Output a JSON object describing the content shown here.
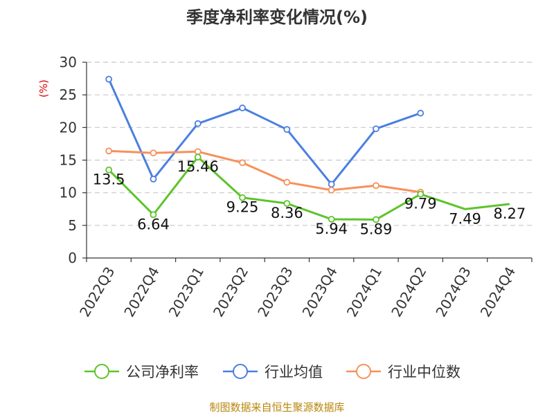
{
  "chart_data": {
    "type": "line",
    "title": "季度净利率变化情况(%)",
    "ylabel": "(%)",
    "ylim": [
      0,
      30
    ],
    "yticks": [
      0,
      5,
      10,
      15,
      20,
      25,
      30
    ],
    "grid": true,
    "legend_position": "bottom",
    "categories": [
      "2022Q3",
      "2022Q4",
      "2023Q1",
      "2023Q2",
      "2023Q3",
      "2023Q4",
      "2024Q1",
      "2024Q2",
      "2024Q3",
      "2024Q4"
    ],
    "series": [
      {
        "name": "公司净利率",
        "color": "#5cc42a",
        "values": [
          13.5,
          6.64,
          15.46,
          9.25,
          8.36,
          5.94,
          5.89,
          9.79,
          7.49,
          8.27
        ],
        "labels": [
          "13.5",
          "6.64",
          "15.46",
          "9.25",
          "8.36",
          "5.94",
          "5.89",
          "9.79",
          "7.49",
          "8.27"
        ],
        "markers": [
          true,
          true,
          true,
          true,
          true,
          true,
          true,
          true,
          false,
          false
        ]
      },
      {
        "name": "行业均值",
        "color": "#4a7fe0",
        "values": [
          27.4,
          12.1,
          20.6,
          23.0,
          19.7,
          11.3,
          19.8,
          22.2,
          null,
          null
        ]
      },
      {
        "name": "行业中位数",
        "color": "#f7905a",
        "values": [
          16.4,
          16.1,
          16.3,
          14.6,
          11.6,
          10.4,
          11.1,
          10.1,
          null,
          null
        ]
      }
    ]
  },
  "source": "制图数据来自恒生聚源数据库"
}
